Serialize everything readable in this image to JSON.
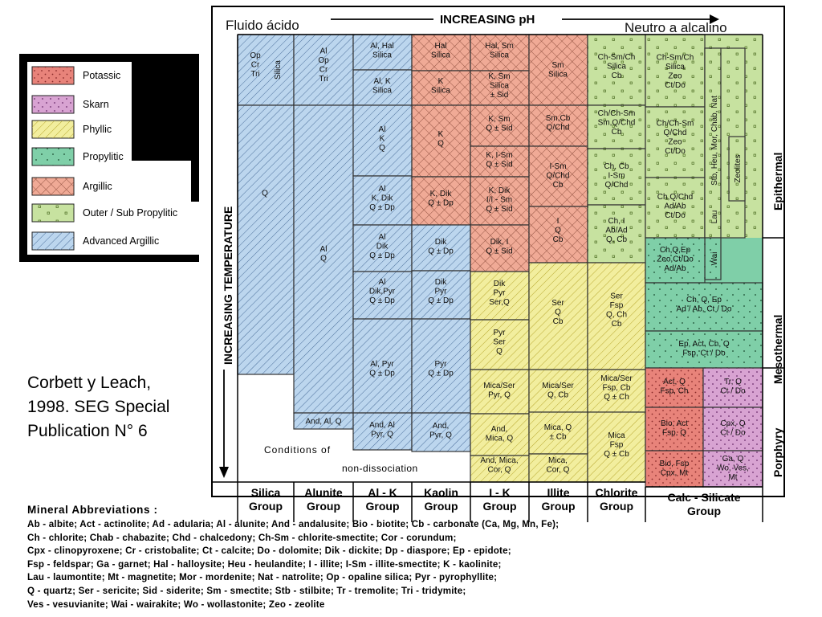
{
  "legend": {
    "items": [
      {
        "label": "Potassic",
        "key": "potassic"
      },
      {
        "label": "Skarn",
        "key": "skarn"
      },
      {
        "label": "Phyllic",
        "key": "phyllic"
      },
      {
        "label": "Propylitic",
        "key": "propylitic"
      },
      {
        "label": "Argillic",
        "key": "argillic"
      },
      {
        "label": "Outer / Sub Propylitic",
        "key": "outer"
      },
      {
        "label": "Advanced Argillic",
        "key": "advanced"
      }
    ]
  },
  "header": {
    "left": "Fluido ácido",
    "center": "INCREASING pH",
    "right": "Neutro a alcalino"
  },
  "axis": {
    "temperature": "INCREASING TEMPERATURE"
  },
  "zones": {
    "epithermal": "Epithermal",
    "mesothermal": "Mesothermal",
    "porphyry": "Porphyry"
  },
  "groups": [
    "Silica Group",
    "Alunite Group",
    "Al - K Group",
    "Kaolin Group",
    "I - K Group",
    "Illite Group",
    "Chlorite Group",
    "Calc - Silicate Group"
  ],
  "nondissociation": {
    "line1": "Conditions of",
    "line2": "non-dissociation"
  },
  "colors": {
    "potassic": "#e8837a",
    "skarn": "#d8a3d2",
    "phyllic": "#f2ee9e",
    "propylitic": "#7fcfa8",
    "argillic": "#f0aa96",
    "outer": "#c7e2a0",
    "advanced": "#bcd6ee"
  },
  "cells": [
    {
      "t": "Op\nCr\nTri"
    },
    {
      "t": "Silica"
    },
    {
      "t": "Q"
    },
    {
      "t": "Al\nOp\nCr\nTri"
    },
    {
      "t": "Al\nQ"
    },
    {
      "t": "And, Al, Q"
    },
    {
      "t": "Al, Hal\nSilica"
    },
    {
      "t": "Al, K\nSilica"
    },
    {
      "t": "Al\nK\nQ"
    },
    {
      "t": "Al\nK, Dik\nQ ± Dp"
    },
    {
      "t": "Al\nDik\nQ ± Dp"
    },
    {
      "t": "Al\nDik,Pyr\nQ ± Dp"
    },
    {
      "t": "Al, Pyr\nQ ± Dp"
    },
    {
      "t": "And, Al\nPyr, Q"
    },
    {
      "t": "Hal\nSilica"
    },
    {
      "t": "K\nSilica"
    },
    {
      "t": "K\nQ"
    },
    {
      "t": "K, Dik\nQ ± Dp"
    },
    {
      "t": "Dik\nQ ± Dp"
    },
    {
      "t": "Dik\nPyr\nQ ± Dp"
    },
    {
      "t": "Pyr\nQ ± Dp"
    },
    {
      "t": "And,\nPyr, Q"
    },
    {
      "t": "Hal, Sm\nSilica"
    },
    {
      "t": "K, Sm\nSilica\n± Sid"
    },
    {
      "t": "K, Sm\nQ ± Sid"
    },
    {
      "t": "K, I-Sm\nQ ± Sid"
    },
    {
      "t": "K, Dik\nI/I - Sm\nQ ± Sid"
    },
    {
      "t": "Dik, I\nQ ± Sid"
    },
    {
      "t": "Dik\nPyr\nSer,Q"
    },
    {
      "t": "Pyr\nSer\nQ"
    },
    {
      "t": "Mica/Ser\nPyr, Q"
    },
    {
      "t": "And,\nMica, Q"
    },
    {
      "t": "And, Mica,\nCor, Q"
    },
    {
      "t": "Sm\nSilica"
    },
    {
      "t": "Sm,Cb\nQ/Chd"
    },
    {
      "t": "I-Sm\nQ/Chd\nCb"
    },
    {
      "t": "I\nQ\nCb"
    },
    {
      "t": "Ser\nQ\nCb"
    },
    {
      "t": "Mica/Ser\nQ, Cb"
    },
    {
      "t": "Mica, Q\n± Cb"
    },
    {
      "t": "Mica,\nCor, Q"
    },
    {
      "t": "Ch-Sm/Ch\nSilica\nCb"
    },
    {
      "t": "Ch/Ch-Sm\nSm,Q/Chd\nCb"
    },
    {
      "t": "Ch, Cb\nI-Sm\nQ/Chd"
    },
    {
      "t": "Ch, I\nAb/Ad\nQ, Cb"
    },
    {
      "t": "Ser\nFsp\nQ, Ch\nCb"
    },
    {
      "t": "Mica/Ser\nFsp, Cb\nQ ± Ch"
    },
    {
      "t": "Mica\nFsp\nQ ± Cb"
    },
    {
      "t": "Ch-Sm/Ch\nSilica\nZeo\nCt/Do"
    },
    {
      "t": "Ch/Ch-Sm\nQ/Chd\nZeo\nCt/Do"
    },
    {
      "t": "Ch,Q/Chd\nAd/Ab\nCt/Do"
    },
    {
      "t": "Stb, Heu, Mor, Chab, Nat"
    },
    {
      "t": "Lau"
    },
    {
      "t": "Zeolites"
    },
    {
      "t": "Wai"
    },
    {
      "t": "Ch,Q,Ep\nZeo,Ct/Do\nAd/Ab"
    },
    {
      "t": "Ch, Q, Ep\nAd / Ab, Ct / Do"
    },
    {
      "t": "Ep, Act, Ch, Q\nFsp, Ct / Do"
    },
    {
      "t": "Act, Q\nFsp, Ch"
    },
    {
      "t": "Bio, Act\nFsp, Q"
    },
    {
      "t": "Bio, Fsp\nCpx, Mt"
    },
    {
      "t": "Tr, Q\nCt / Do"
    },
    {
      "t": "Cpx, Q\nCt / Do"
    },
    {
      "t": "Ga, Q\nWo, Ves,\nMt"
    }
  ],
  "citation": {
    "line1": "Corbett y Leach,",
    "line2": "1998. SEG Special",
    "line3": "Publication N° 6"
  },
  "abbreviations": {
    "title": "Mineral Abbreviations :",
    "lines": [
      "Ab - albite; Act - actinolite; Ad - adularia; Al - alunite; And - andalusite; Bio - biotite; Cb - carbonate (Ca, Mg, Mn, Fe);",
      "Ch - chlorite; Chab - chabazite; Chd - chalcedony; Ch-Sm - chlorite-smectite; Cor - corundum;",
      "Cpx - clinopyroxene; Cr - cristobalite; Ct - calcite; Do - dolomite; Dik - dickite; Dp - diaspore; Ep - epidote;",
      "Fsp - feldspar; Ga - garnet; Hal - halloysite; Heu - heulandite; I - illite; I-Sm - illite-smectite; K - kaolinite;",
      "Lau - laumontite; Mt - magnetite; Mor - mordenite; Nat - natrolite; Op - opaline silica; Pyr - pyrophyllite;",
      "Q - quartz; Ser - sericite; Sid - siderite; Sm - smectite; Stb - stilbite; Tr - tremolite; Tri - tridymite;",
      "Ves - vesuvianite; Wai - wairakite; Wo - wollastonite; Zeo - zeolite"
    ]
  }
}
